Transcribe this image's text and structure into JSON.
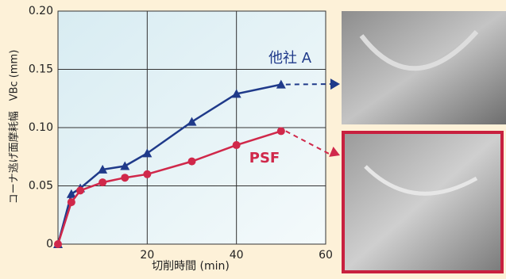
{
  "chart_data": {
    "type": "line",
    "x_label": "切削時間 (min)",
    "y_label": "コーナ逃げ面摩耗幅　VBc (mm)",
    "xlim": [
      0,
      60
    ],
    "xticks": [
      20,
      40,
      60
    ],
    "ylim": [
      0,
      0.2
    ],
    "yticks": [
      0,
      0.05,
      {
        "value": 0.1,
        "label": "0.10"
      },
      0.15,
      {
        "value": 0.2,
        "label": "0.20"
      }
    ],
    "grid": true,
    "series": [
      {
        "name": "他社 A",
        "color": "#1f3a8a",
        "marker": "triangle",
        "x": [
          0,
          3,
          5,
          10,
          15,
          20,
          30,
          40,
          50
        ],
        "values": [
          0,
          0.043,
          0.048,
          0.064,
          0.067,
          0.078,
          0.105,
          0.129,
          0.137
        ]
      },
      {
        "name": "PSF",
        "color": "#d0284a",
        "marker": "circle",
        "x": [
          0,
          3,
          5,
          10,
          15,
          20,
          30,
          40,
          50
        ],
        "values": [
          0,
          0.036,
          0.046,
          0.053,
          0.057,
          0.06,
          0.071,
          0.085,
          0.097
        ]
      }
    ]
  }
}
